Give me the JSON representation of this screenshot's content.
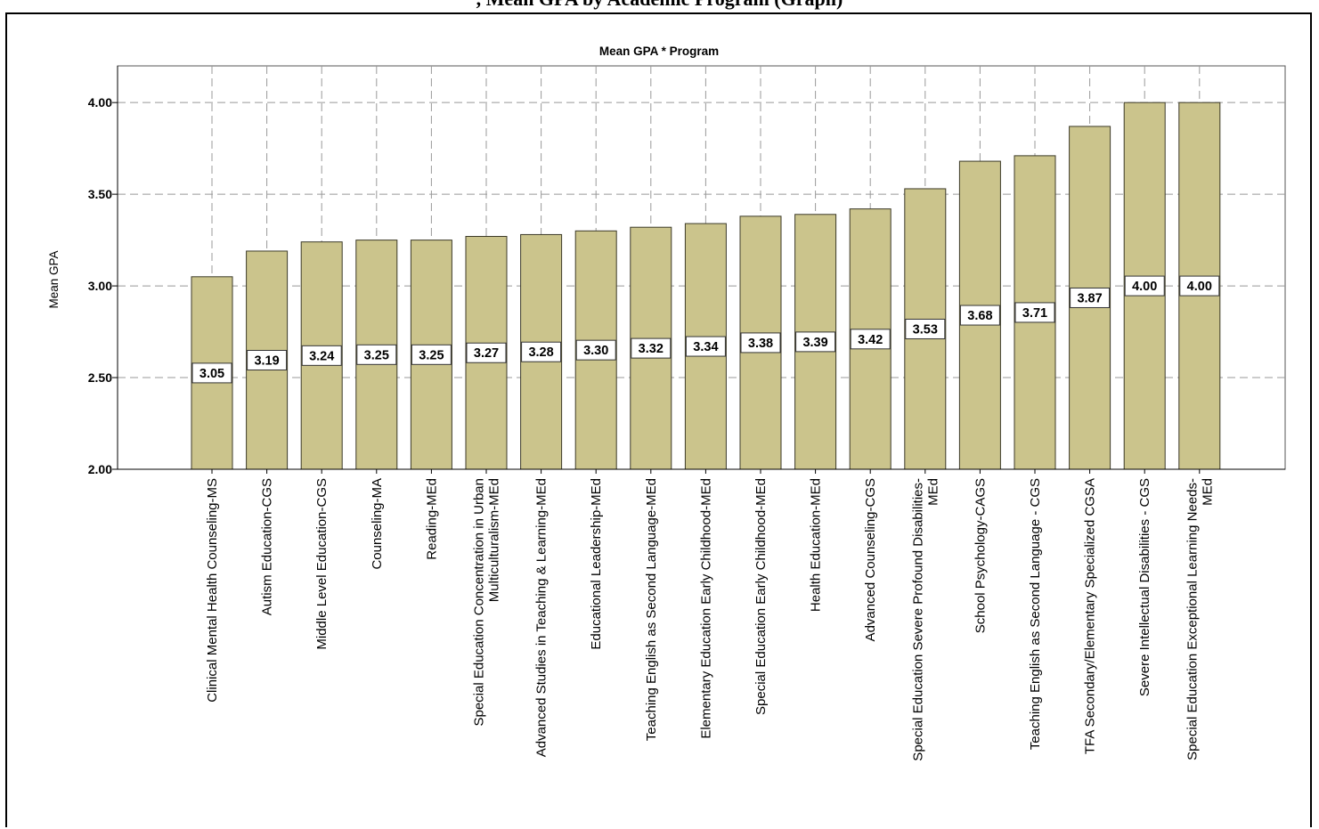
{
  "page_heading": ", Mean GPA by Academic Program (Graph)",
  "chart_data": {
    "type": "bar",
    "title": "Mean GPA * Program",
    "xlabel": "",
    "ylabel": "Mean GPA",
    "ylim": [
      2.0,
      4.2
    ],
    "yticks": [
      2.0,
      2.5,
      3.0,
      3.5,
      4.0
    ],
    "ytick_labels": [
      "2.00",
      "2.50",
      "3.00",
      "3.50",
      "4.00"
    ],
    "grid": true,
    "bar_color": "#cbc48c",
    "categories": [
      [
        "Clinical Mental Health Counseling-MS"
      ],
      [
        "Autism Education-CGS"
      ],
      [
        "Middle Level Education-CGS"
      ],
      [
        "Counseling-MA"
      ],
      [
        "Reading-MEd"
      ],
      [
        "Special Education Concentration in Urban",
        "Multiculturalism-MEd"
      ],
      [
        "Advanced Studies in Teaching & Learning-MEd"
      ],
      [
        "Educational Leadership-MEd"
      ],
      [
        "Teaching English as Second Language-MEd"
      ],
      [
        "Elementary Education Early Childhood-MEd"
      ],
      [
        "Special Education Early Childhood-MEd"
      ],
      [
        "Health Education-MEd"
      ],
      [
        "Advanced Counseling-CGS"
      ],
      [
        "Special Education Severe Profound Disabilities-",
        "MEd"
      ],
      [
        "School Psychology-CAGS"
      ],
      [
        "Teaching English as Second Language - CGS"
      ],
      [
        "TFA Secondary/Elementary Specialized CGSA"
      ],
      [
        "Severe Intellectual Disabilities - CGS"
      ],
      [
        "Special Education Exceptional Learning Needs-",
        "MEd"
      ]
    ],
    "values": [
      3.05,
      3.19,
      3.24,
      3.25,
      3.25,
      3.27,
      3.28,
      3.3,
      3.32,
      3.34,
      3.38,
      3.39,
      3.42,
      3.53,
      3.68,
      3.71,
      3.87,
      4.0,
      4.0
    ],
    "value_labels": [
      "3.05",
      "3.19",
      "3.24",
      "3.25",
      "3.25",
      "3.27",
      "3.28",
      "3.30",
      "3.32",
      "3.34",
      "3.38",
      "3.39",
      "3.42",
      "3.53",
      "3.68",
      "3.71",
      "3.87",
      "4.00",
      "4.00"
    ]
  }
}
